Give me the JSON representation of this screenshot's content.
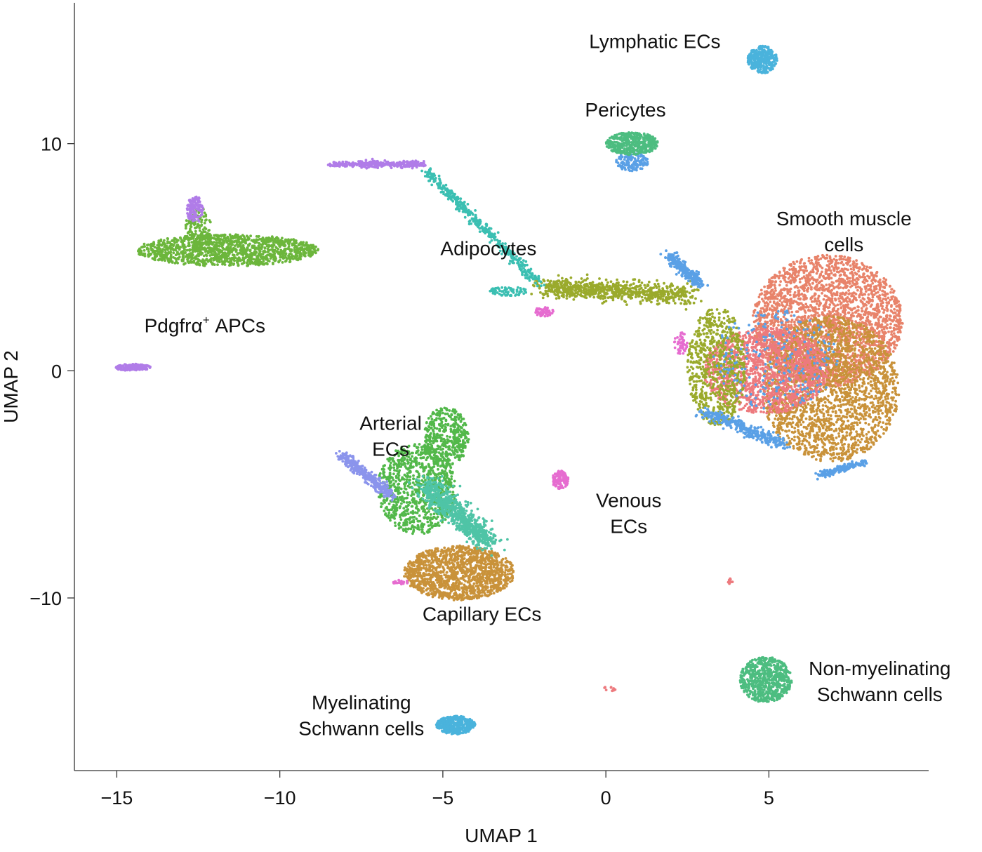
{
  "chart_data": {
    "type": "scatter",
    "title": "",
    "xlabel": "UMAP 1",
    "ylabel": "UMAP 2",
    "xlim": [
      -16.3,
      9.9
    ],
    "ylim": [
      -17.6,
      16.2
    ],
    "xticks": [
      -15,
      -10,
      -5,
      0,
      5
    ],
    "xtick_labels": [
      "−15",
      "−10",
      "−5",
      "0",
      "5"
    ],
    "yticks": [
      -10,
      0,
      10
    ],
    "ytick_labels": [
      "−10",
      "0",
      "10"
    ],
    "grid": false,
    "legend": "none",
    "annotations": [
      {
        "lines": [
          "Lymphatic ECs"
        ],
        "x": 1.5,
        "y": 14.2
      },
      {
        "lines": [
          "Pericytes"
        ],
        "x": 0.6,
        "y": 11.2
      },
      {
        "lines": [
          "Smooth muscle",
          "cells"
        ],
        "x": 7.3,
        "y": 6.4
      },
      {
        "lines": [
          "Adipocytes"
        ],
        "x": -3.6,
        "y": 5.1
      },
      {
        "lines": [
          "Pdgfrα",
          "+",
          " APCs"
        ],
        "x": -12.3,
        "y": 1.7,
        "superscript": true
      },
      {
        "lines": [
          "Arterial",
          "ECs"
        ],
        "x": -6.6,
        "y": -2.6
      },
      {
        "lines": [
          "Venous",
          "ECs"
        ],
        "x": 0.7,
        "y": -6.0
      },
      {
        "lines": [
          "Capillary ECs"
        ],
        "x": -3.8,
        "y": -11.0
      },
      {
        "lines": [
          "Non-myelinating",
          "Schwann cells"
        ],
        "x": 8.4,
        "y": -13.4
      },
      {
        "lines": [
          "Myelinating",
          "Schwann cells"
        ],
        "x": -7.5,
        "y": -14.9
      }
    ],
    "series": [
      {
        "color": "#e8836a",
        "clusters": [
          {
            "shape": "ellipse",
            "cx": 6.8,
            "cy": 2.2,
            "rx": 2.3,
            "ry": 2.9,
            "n": 2600
          }
        ]
      },
      {
        "color": "#c9923a",
        "clusters": [
          {
            "shape": "ellipse",
            "cx": 6.9,
            "cy": -0.8,
            "rx": 2.1,
            "ry": 3.2,
            "n": 2100
          },
          {
            "shape": "ellipse",
            "cx": -4.5,
            "cy": -8.9,
            "rx": 1.7,
            "ry": 1.2,
            "n": 1400
          }
        ]
      },
      {
        "color": "#ed7a7e",
        "clusters": [
          {
            "shape": "ellipse",
            "cx": 4.9,
            "cy": 0.0,
            "rx": 1.9,
            "ry": 1.9,
            "n": 1400
          },
          {
            "shape": "ellipse",
            "cx": 3.8,
            "cy": -9.3,
            "rx": 0.1,
            "ry": 0.15,
            "n": 10
          },
          {
            "shape": "ellipse",
            "cx": 0.1,
            "cy": -14.0,
            "rx": 0.2,
            "ry": 0.1,
            "n": 10
          }
        ]
      },
      {
        "color": "#9aaa2c",
        "clusters": [
          {
            "shape": "ellipse",
            "cx": 3.4,
            "cy": 0.2,
            "rx": 0.9,
            "ry": 2.6,
            "n": 700
          },
          {
            "shape": "line",
            "x1": -1.9,
            "y1": 3.7,
            "x2": 2.6,
            "y2": 3.3,
            "spread": 0.6,
            "n": 800
          }
        ]
      },
      {
        "color": "#5aa0e6",
        "clusters": [
          {
            "shape": "line",
            "x1": 1.9,
            "y1": 5.1,
            "x2": 2.9,
            "y2": 3.8,
            "spread": 0.3,
            "n": 260
          },
          {
            "shape": "line",
            "x1": 3.0,
            "y1": -1.8,
            "x2": 5.5,
            "y2": -3.3,
            "spread": 0.35,
            "n": 350
          },
          {
            "shape": "line",
            "x1": 6.5,
            "y1": -4.6,
            "x2": 8.0,
            "y2": -4.0,
            "spread": 0.2,
            "n": 160
          },
          {
            "shape": "ellipse",
            "cx": 0.8,
            "cy": 9.2,
            "rx": 0.5,
            "ry": 0.4,
            "n": 140
          },
          {
            "shape": "ellipse",
            "cx": 5.2,
            "cy": 0.5,
            "rx": 1.9,
            "ry": 2.2,
            "n": 220
          }
        ]
      },
      {
        "color": "#6cb63c",
        "clusters": [
          {
            "shape": "ellipse",
            "cx": -11.6,
            "cy": 5.3,
            "rx": 2.8,
            "ry": 0.7,
            "n": 1300
          },
          {
            "shape": "ellipse",
            "cx": -12.5,
            "cy": 6.2,
            "rx": 0.4,
            "ry": 1.0,
            "n": 160
          }
        ]
      },
      {
        "color": "#52b84a",
        "clusters": [
          {
            "shape": "ellipse",
            "cx": -5.8,
            "cy": -5.2,
            "rx": 1.2,
            "ry": 2.0,
            "n": 900
          },
          {
            "shape": "ellipse",
            "cx": -4.9,
            "cy": -2.9,
            "rx": 0.7,
            "ry": 1.3,
            "n": 450
          }
        ]
      },
      {
        "color": "#4fc4a6",
        "clusters": [
          {
            "shape": "line",
            "x1": -5.5,
            "y1": -5.0,
            "x2": -3.6,
            "y2": -7.6,
            "spread": 0.6,
            "n": 800
          }
        ]
      },
      {
        "color": "#3bbfb2",
        "clusters": [
          {
            "shape": "line",
            "x1": -5.5,
            "y1": 8.8,
            "x2": -2.0,
            "y2": 3.8,
            "spread": 0.25,
            "n": 450
          },
          {
            "shape": "ellipse",
            "cx": -3.0,
            "cy": 3.5,
            "rx": 0.6,
            "ry": 0.2,
            "n": 70
          }
        ]
      },
      {
        "color": "#4dbd80",
        "clusters": [
          {
            "shape": "ellipse",
            "cx": 0.8,
            "cy": 10.0,
            "rx": 0.8,
            "ry": 0.5,
            "n": 420
          },
          {
            "shape": "ellipse",
            "cx": 4.9,
            "cy": -13.6,
            "rx": 0.8,
            "ry": 1.0,
            "n": 650
          }
        ]
      },
      {
        "color": "#4ab3dc",
        "clusters": [
          {
            "shape": "ellipse",
            "cx": 4.8,
            "cy": 13.7,
            "rx": 0.45,
            "ry": 0.6,
            "n": 320
          },
          {
            "shape": "ellipse",
            "cx": -4.6,
            "cy": -15.6,
            "rx": 0.6,
            "ry": 0.4,
            "n": 420
          }
        ]
      },
      {
        "color": "#b07ce8",
        "clusters": [
          {
            "shape": "line",
            "x1": -8.4,
            "y1": 9.1,
            "x2": -5.6,
            "y2": 9.1,
            "spread": 0.2,
            "n": 340
          },
          {
            "shape": "ellipse",
            "cx": -12.6,
            "cy": 7.1,
            "rx": 0.25,
            "ry": 0.6,
            "n": 130
          },
          {
            "shape": "ellipse",
            "cx": -14.5,
            "cy": 0.15,
            "rx": 0.55,
            "ry": 0.15,
            "n": 150
          }
        ]
      },
      {
        "color": "#8b94ec",
        "clusters": [
          {
            "shape": "line",
            "x1": -8.1,
            "y1": -3.7,
            "x2": -6.6,
            "y2": -5.5,
            "spread": 0.3,
            "n": 320
          }
        ]
      },
      {
        "color": "#e66cd0",
        "clusters": [
          {
            "shape": "ellipse",
            "cx": -1.4,
            "cy": -4.8,
            "rx": 0.25,
            "ry": 0.4,
            "n": 120
          },
          {
            "shape": "ellipse",
            "cx": -1.9,
            "cy": 2.6,
            "rx": 0.3,
            "ry": 0.2,
            "n": 60
          },
          {
            "shape": "ellipse",
            "cx": 2.3,
            "cy": 1.2,
            "rx": 0.2,
            "ry": 0.5,
            "n": 50
          },
          {
            "shape": "ellipse",
            "cx": -6.3,
            "cy": -9.3,
            "rx": 0.25,
            "ry": 0.1,
            "n": 25
          }
        ]
      }
    ]
  }
}
